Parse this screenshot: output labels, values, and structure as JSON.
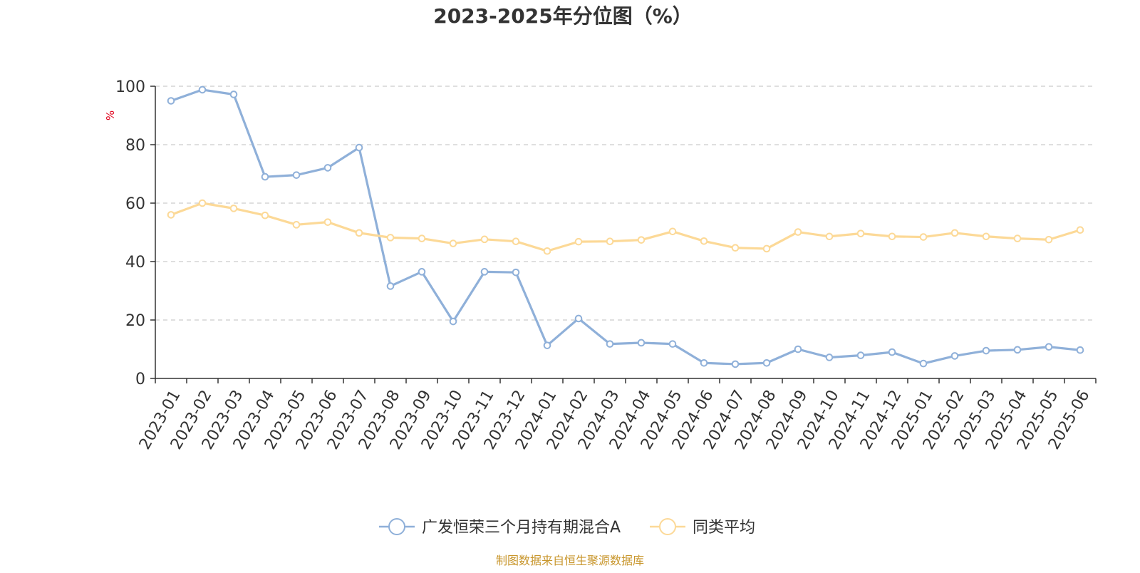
{
  "colors": {
    "series_primary": "#8fb0d9",
    "series_secondary": "#fcd997",
    "grid": "#cccccc",
    "axis": "#333333",
    "unit_label": "#e0001b",
    "source_text": "#c8962c"
  },
  "source_note": "制图数据来自恒生聚源数据库",
  "chart_data": {
    "type": "line",
    "title": "2023-2025年分位图（%）",
    "ylabel": "%",
    "xlabel": "",
    "ylim": [
      0,
      100
    ],
    "yticks": [
      0,
      20,
      40,
      60,
      80,
      100
    ],
    "grid": true,
    "legend_position": "bottom",
    "categories": [
      "2023-01",
      "2023-02",
      "2023-03",
      "2023-04",
      "2023-05",
      "2023-06",
      "2023-07",
      "2023-08",
      "2023-09",
      "2023-10",
      "2023-11",
      "2023-12",
      "2024-01",
      "2024-02",
      "2024-03",
      "2024-04",
      "2024-05",
      "2024-06",
      "2024-07",
      "2024-08",
      "2024-09",
      "2024-10",
      "2024-11",
      "2024-12",
      "2025-01",
      "2025-02",
      "2025-03",
      "2025-04",
      "2025-05",
      "2025-06"
    ],
    "series": [
      {
        "name": "广发恒荣三个月持有期混合A",
        "color": "#8fb0d9",
        "values": [
          95,
          98.8,
          97.2,
          69,
          69.6,
          72.1,
          79,
          31.6,
          36.5,
          19.5,
          36.5,
          36.3,
          11.3,
          20.5,
          11.8,
          12.2,
          11.8,
          5.3,
          4.9,
          5.3,
          10,
          7.2,
          7.9,
          9,
          5.1,
          7.7,
          9.5,
          9.8,
          10.8,
          9.7
        ]
      },
      {
        "name": "同类平均",
        "color": "#fcd997",
        "values": [
          56,
          60,
          58.2,
          55.8,
          52.6,
          53.5,
          49.8,
          48.2,
          47.9,
          46.2,
          47.6,
          46.9,
          43.6,
          46.8,
          46.9,
          47.4,
          50.3,
          47,
          44.7,
          44.4,
          50.1,
          48.6,
          49.6,
          48.6,
          48.4,
          49.8,
          48.6,
          47.9,
          47.5,
          50.8
        ]
      }
    ]
  }
}
